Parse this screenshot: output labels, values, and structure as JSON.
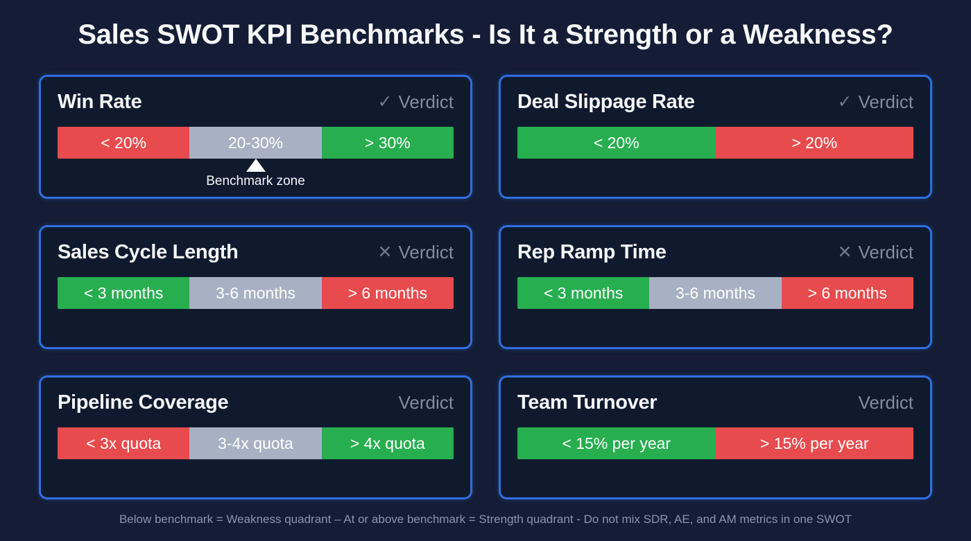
{
  "page": {
    "title": "Sales SWOT KPI Benchmarks - Is It a Strength or a Weakness?",
    "footer": "Below benchmark = Weakness quadrant – At or above benchmark = Strength quadrant - Do not mix SDR, AE, and AM metrics in one SWOT"
  },
  "verdict": {
    "label": "Verdict"
  },
  "colors": {
    "background": "#141d35",
    "card_background": "#101a2e",
    "card_border": "#2f6fe1",
    "weakness_red": "#e84b4d",
    "benchmark_gray": "#a7b1c3",
    "strength_green": "#27ae4f",
    "muted_text": "#8b94a8",
    "title_text": "#f4f6f9"
  },
  "chart_data": [
    {
      "type": "bar",
      "title": "Win Rate",
      "verdict_icon": "✓",
      "segments": [
        {
          "label": "< 20%",
          "color": "red"
        },
        {
          "label": "20-30%",
          "color": "gray"
        },
        {
          "label": "> 30%",
          "color": "green"
        }
      ],
      "annotation": "Benchmark zone"
    },
    {
      "type": "bar",
      "title": "Deal Slippage Rate",
      "verdict_icon": "✓",
      "segments": [
        {
          "label": "< 20%",
          "color": "green"
        },
        {
          "label": "> 20%",
          "color": "red"
        }
      ]
    },
    {
      "type": "bar",
      "title": "Sales Cycle Length",
      "verdict_icon": "✕",
      "segments": [
        {
          "label": "< 3 months",
          "color": "green"
        },
        {
          "label": "3-6 months",
          "color": "gray"
        },
        {
          "label": "> 6 months",
          "color": "red"
        }
      ]
    },
    {
      "type": "bar",
      "title": "Rep Ramp Time",
      "verdict_icon": "✕",
      "segments": [
        {
          "label": "< 3 months",
          "color": "green"
        },
        {
          "label": "3-6 months",
          "color": "gray"
        },
        {
          "label": "> 6 months",
          "color": "red"
        }
      ]
    },
    {
      "type": "bar",
      "title": "Pipeline Coverage",
      "verdict_icon": "",
      "segments": [
        {
          "label": "< 3x quota",
          "color": "red"
        },
        {
          "label": "3-4x quota",
          "color": "gray"
        },
        {
          "label": "> 4x quota",
          "color": "green"
        }
      ]
    },
    {
      "type": "bar",
      "title": "Team Turnover",
      "verdict_icon": "",
      "segments": [
        {
          "label": "< 15% per year",
          "color": "green"
        },
        {
          "label": "> 15% per year",
          "color": "red"
        }
      ]
    }
  ]
}
